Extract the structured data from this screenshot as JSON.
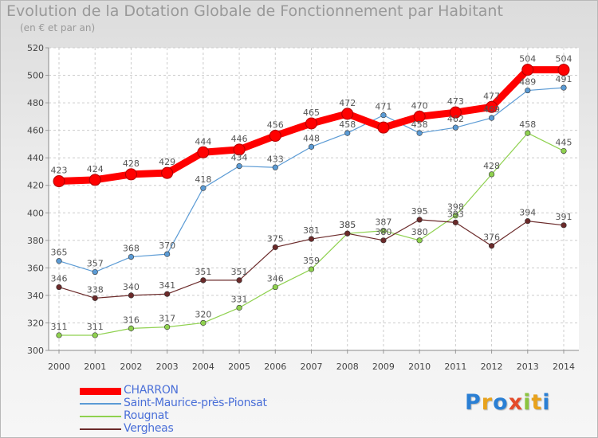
{
  "title": "Evolution de la Dotation Globale de Fonctionnement par Habitant",
  "subtitle": "(en € et par an)",
  "logo": {
    "letters": [
      "P",
      "r",
      "o",
      "x",
      "i",
      "t",
      "i"
    ],
    "colors": [
      "#2a7fd4",
      "#e8a21c",
      "#2a7fd4",
      "#e44b2a",
      "#8bc43f",
      "#e8a21c",
      "#2a7fd4"
    ]
  },
  "chart_data": {
    "type": "line",
    "title": "Evolution de la Dotation Globale de Fonctionnement par Habitant",
    "subtitle": "(en € et par an)",
    "x": [
      "2000",
      "2001",
      "2002",
      "2003",
      "2004",
      "2005",
      "2006",
      "2007",
      "2008",
      "2009",
      "2010",
      "2011",
      "2012",
      "2013",
      "2014"
    ],
    "ylim": [
      300,
      520
    ],
    "yticks": [
      300,
      320,
      340,
      360,
      380,
      400,
      420,
      440,
      460,
      480,
      500,
      520
    ],
    "grid": true,
    "legend_position": "bottom-left",
    "series": [
      {
        "name": "CHARRON",
        "color": "#ff0000",
        "values": [
          423,
          424,
          428,
          429,
          444,
          446,
          456,
          465,
          472,
          462,
          470,
          473,
          477,
          504,
          504
        ],
        "labels": [
          "423",
          "424",
          "428",
          "429",
          "444",
          "446",
          "456",
          "465",
          "472",
          "",
          "470",
          "473",
          "477",
          "504",
          "504"
        ]
      },
      {
        "name": "Saint-Maurice-près-Pionsat",
        "color": "#5b9bd5",
        "values": [
          365,
          357,
          368,
          370,
          418,
          434,
          433,
          448,
          458,
          471,
          458,
          462,
          469,
          489,
          491
        ],
        "labels": [
          "365",
          "357",
          "368",
          "370",
          "418",
          "434",
          "433",
          "448",
          "458",
          "471",
          "458",
          "462",
          "469",
          "489",
          "491"
        ]
      },
      {
        "name": "Rougnat",
        "color": "#8fd14f",
        "values": [
          311,
          311,
          316,
          317,
          320,
          331,
          346,
          359,
          385,
          387,
          380,
          398,
          428,
          458,
          445
        ],
        "labels": [
          "311",
          "311",
          "316",
          "317",
          "320",
          "331",
          "346",
          "359",
          "385",
          "387",
          "380",
          "398",
          "428",
          "458",
          "445"
        ]
      },
      {
        "name": "Vergheas",
        "color": "#6b2a2a",
        "values": [
          346,
          338,
          340,
          341,
          351,
          351,
          375,
          381,
          385,
          380,
          395,
          393,
          376,
          394,
          391
        ],
        "labels": [
          "346",
          "338",
          "340",
          "341",
          "351",
          "351",
          "375",
          "381",
          "385",
          "380",
          "395",
          "393",
          "376",
          "394",
          "391"
        ]
      }
    ]
  }
}
